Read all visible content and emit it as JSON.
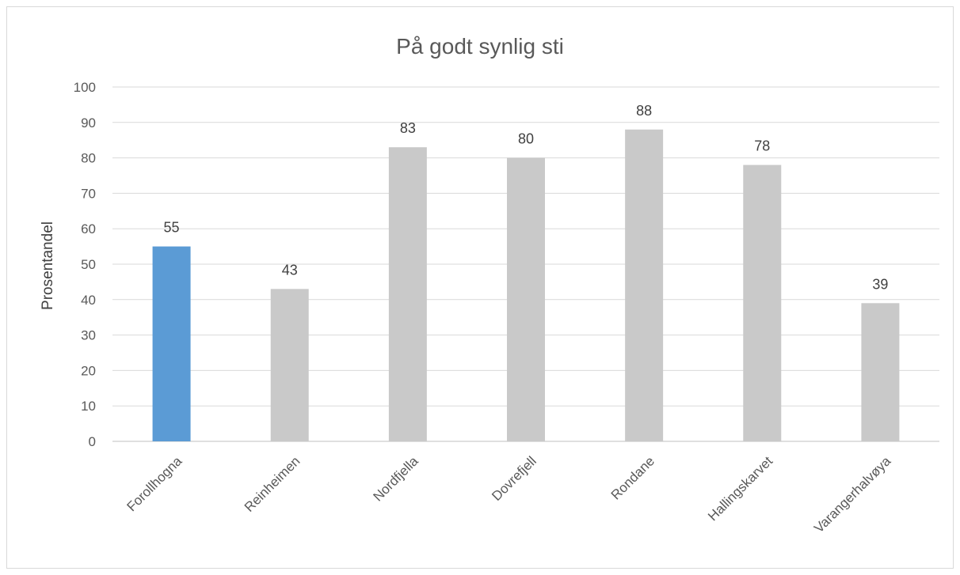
{
  "chart_data": {
    "type": "bar",
    "title": "På godt synlig sti",
    "xlabel": "",
    "ylabel": "Prosentandel",
    "ylim": [
      0,
      100
    ],
    "y_ticks": [
      "0",
      "10",
      "20",
      "30",
      "40",
      "50",
      "60",
      "70",
      "80",
      "90",
      "100"
    ],
    "categories": [
      "Forollhogna",
      "Reinheimen",
      "Nordfjella",
      "Dovrefjell",
      "Rondane",
      "Hallingskarvet",
      "Varangerhalvøya"
    ],
    "values": [
      55,
      43,
      83,
      80,
      88,
      78,
      39
    ],
    "data_labels": [
      "55",
      "43",
      "83",
      "80",
      "88",
      "78",
      "39"
    ],
    "highlight_index": 0,
    "colors": {
      "highlight": "#5b9bd5",
      "default": "#c9c9c9",
      "gridline": "#d9d9d9"
    },
    "grid": true,
    "legend": "none"
  }
}
